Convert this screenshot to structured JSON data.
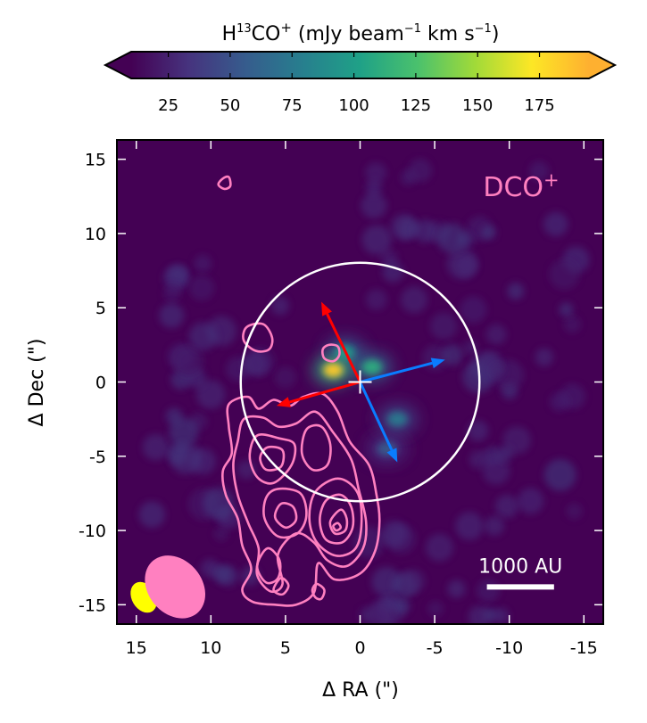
{
  "colorbar": {
    "title_main": "H",
    "title_sup_iso": "13",
    "title_mol": "CO",
    "title_sup_charge": "+",
    "title_units_a": "(mJy beam",
    "title_units_sup1": "−1",
    "title_units_b": " km s",
    "title_units_sup2": "−1",
    "title_units_c": ")",
    "range": [
      10,
      195
    ],
    "ticks": [
      {
        "value": 25,
        "label": "25"
      },
      {
        "value": 50,
        "label": "50"
      },
      {
        "value": 75,
        "label": "75"
      },
      {
        "value": 100,
        "label": "100"
      },
      {
        "value": 125,
        "label": "125"
      },
      {
        "value": 150,
        "label": "150"
      },
      {
        "value": 175,
        "label": "175"
      }
    ],
    "colors": [
      "#440154",
      "#46337e",
      "#365c8d",
      "#277f8e",
      "#1fa187",
      "#4ac16d",
      "#a0da39",
      "#fde725",
      "#feb030"
    ]
  },
  "chart_data": {
    "type": "heatmap",
    "xlabel": "Δ RA (\")",
    "ylabel": "Δ Dec (\")",
    "xlim": [
      16.3,
      -16.3
    ],
    "ylim": [
      -16.3,
      16.3
    ],
    "xticks": [
      {
        "value": 15,
        "label": "15"
      },
      {
        "value": 10,
        "label": "10"
      },
      {
        "value": 5,
        "label": "5"
      },
      {
        "value": 0,
        "label": "0"
      },
      {
        "value": -5,
        "label": "-5"
      },
      {
        "value": -10,
        "label": "-10"
      },
      {
        "value": -15,
        "label": "-15"
      }
    ],
    "yticks": [
      {
        "value": 15,
        "label": "15"
      },
      {
        "value": 10,
        "label": "10"
      },
      {
        "value": 5,
        "label": "5"
      },
      {
        "value": 0,
        "label": "0"
      },
      {
        "value": -5,
        "label": "-5"
      },
      {
        "value": -10,
        "label": "-10"
      },
      {
        "value": -15,
        "label": "-15"
      }
    ],
    "background_color": "#440154",
    "overlay_label": "DCO",
    "overlay_label_sup": "+",
    "overlay_color": "#ff80c0",
    "circle": {
      "center": [
        0,
        0
      ],
      "radius_arcsec": 8.0,
      "color": "#ffffff"
    },
    "center_marker": {
      "ra": 0,
      "dec": 0,
      "color": "#ffffff"
    },
    "arrows": [
      {
        "name": "red-arrow-north",
        "from": [
          0,
          0
        ],
        "to": [
          2.6,
          5.4
        ],
        "color": "#ff0000"
      },
      {
        "name": "red-arrow-east",
        "from": [
          0,
          0
        ],
        "to": [
          5.6,
          -1.6
        ],
        "color": "#ff0000"
      },
      {
        "name": "blue-arrow-west",
        "from": [
          0,
          0
        ],
        "to": [
          -5.7,
          1.5
        ],
        "color": "#0a7cff"
      },
      {
        "name": "blue-arrow-south",
        "from": [
          0,
          0
        ],
        "to": [
          -2.5,
          -5.4
        ],
        "color": "#0a7cff"
      }
    ],
    "emission_peaks": [
      {
        "ra": 1.8,
        "dec": 0.8,
        "value": 185
      },
      {
        "ra": 1.0,
        "dec": 2.0,
        "value": 95
      },
      {
        "ra": -0.8,
        "dec": 1.0,
        "value": 110
      },
      {
        "ra": -2.5,
        "dec": -2.5,
        "value": 75
      },
      {
        "ra": -1.8,
        "dec": -4.5,
        "value": 55
      }
    ],
    "scalebar": {
      "label": "1000 AU",
      "ra_from": -8.5,
      "ra_to": -13.0,
      "dec": -13.8,
      "color": "#ffffff"
    },
    "beams": [
      {
        "name": "h13co-beam",
        "ra": 14.5,
        "dec": -14.5,
        "major": 1.1,
        "minor": 0.8,
        "angle": -30,
        "color": "#ffff00"
      },
      {
        "name": "dco-beam",
        "ra": 12.4,
        "dec": -13.8,
        "major": 2.3,
        "minor": 1.8,
        "angle": -40,
        "color": "#ff80c0"
      }
    ],
    "contours": [
      {
        "name": "dco-contour-1",
        "points": [
          [
            8.8,
            -1.5
          ],
          [
            7.5,
            -1.0
          ],
          [
            6.8,
            -1.8
          ],
          [
            5.8,
            -1.2
          ],
          [
            4.7,
            -1.6
          ],
          [
            3.8,
            -1.0
          ],
          [
            2.5,
            -0.8
          ],
          [
            1.5,
            -2.0
          ],
          [
            0.7,
            -4.0
          ],
          [
            -0.6,
            -5.6
          ],
          [
            -1.1,
            -7.6
          ],
          [
            -1.3,
            -9.4
          ],
          [
            -1.0,
            -11.4
          ],
          [
            0.0,
            -12.9
          ],
          [
            1.7,
            -13.3
          ],
          [
            2.8,
            -12.2
          ],
          [
            3.1,
            -14.2
          ],
          [
            4.3,
            -15.0
          ],
          [
            5.7,
            -15.0
          ],
          [
            7.2,
            -14.8
          ],
          [
            7.9,
            -14.0
          ],
          [
            7.3,
            -12.6
          ],
          [
            7.9,
            -11.0
          ],
          [
            8.2,
            -9.2
          ],
          [
            9.0,
            -7.6
          ],
          [
            9.2,
            -6.0
          ],
          [
            8.6,
            -4.8
          ],
          [
            8.8,
            -3.0
          ]
        ]
      },
      {
        "name": "dco-contour-2",
        "points": [
          [
            7.8,
            -2.5
          ],
          [
            6.5,
            -2.4
          ],
          [
            5.5,
            -3.0
          ],
          [
            4.3,
            -2.8
          ],
          [
            3.0,
            -2.0
          ],
          [
            1.8,
            -3.4
          ],
          [
            0.6,
            -5.2
          ],
          [
            0.1,
            -7.2
          ],
          [
            -0.4,
            -9.4
          ],
          [
            -0.2,
            -11.2
          ],
          [
            0.9,
            -12.4
          ],
          [
            2.2,
            -12.0
          ],
          [
            3.1,
            -10.8
          ],
          [
            4.3,
            -10.2
          ],
          [
            5.5,
            -11.6
          ],
          [
            5.2,
            -13.6
          ],
          [
            6.0,
            -14.1
          ],
          [
            6.9,
            -13.0
          ],
          [
            6.8,
            -11.2
          ],
          [
            7.5,
            -9.5
          ],
          [
            8.2,
            -7.6
          ],
          [
            8.5,
            -5.6
          ],
          [
            8.2,
            -4.0
          ]
        ]
      },
      {
        "name": "dco-contour-3",
        "points": [
          [
            6.9,
            -3.6
          ],
          [
            5.4,
            -3.8
          ],
          [
            4.4,
            -4.2
          ],
          [
            4.6,
            -5.6
          ],
          [
            5.8,
            -6.8
          ],
          [
            6.9,
            -6.4
          ],
          [
            7.4,
            -5.0
          ]
        ]
      },
      {
        "name": "dco-contour-4",
        "points": [
          [
            6.2,
            -4.4
          ],
          [
            5.2,
            -4.6
          ],
          [
            5.3,
            -5.7
          ],
          [
            6.3,
            -5.9
          ],
          [
            6.7,
            -5.1
          ]
        ]
      },
      {
        "name": "dco-contour-5",
        "points": [
          [
            3.6,
            -3.2
          ],
          [
            2.6,
            -3.0
          ],
          [
            2.0,
            -4.2
          ],
          [
            2.2,
            -5.6
          ],
          [
            3.2,
            -5.9
          ],
          [
            3.9,
            -4.8
          ]
        ]
      },
      {
        "name": "dco-contour-6",
        "points": [
          [
            1.5,
            -6.5
          ],
          [
            0.2,
            -7.4
          ],
          [
            -0.1,
            -9.4
          ],
          [
            0.3,
            -11.2
          ],
          [
            1.6,
            -11.7
          ],
          [
            2.9,
            -10.8
          ],
          [
            3.4,
            -9.2
          ],
          [
            3.0,
            -7.4
          ]
        ]
      },
      {
        "name": "dco-contour-7",
        "points": [
          [
            1.3,
            -7.6
          ],
          [
            0.6,
            -8.4
          ],
          [
            0.5,
            -9.8
          ],
          [
            1.2,
            -10.8
          ],
          [
            2.3,
            -10.6
          ],
          [
            2.7,
            -9.3
          ],
          [
            2.3,
            -8.0
          ]
        ]
      },
      {
        "name": "dco-contour-8",
        "points": [
          [
            1.3,
            -8.6
          ],
          [
            0.9,
            -9.2
          ],
          [
            1.0,
            -10.0
          ],
          [
            1.7,
            -10.2
          ],
          [
            2.0,
            -9.4
          ]
        ]
      },
      {
        "name": "dco-contour-9",
        "points": [
          [
            1.5,
            -9.5
          ],
          [
            1.3,
            -9.8
          ],
          [
            1.6,
            -10.0
          ],
          [
            1.8,
            -9.7
          ]
        ]
      },
      {
        "name": "dco-contour-10",
        "points": [
          [
            5.5,
            -7.2
          ],
          [
            4.0,
            -7.5
          ],
          [
            3.6,
            -9.0
          ],
          [
            4.2,
            -10.2
          ],
          [
            5.5,
            -10.4
          ],
          [
            6.4,
            -9.2
          ],
          [
            6.3,
            -7.8
          ]
        ]
      },
      {
        "name": "dco-contour-11",
        "points": [
          [
            5.3,
            -8.2
          ],
          [
            4.5,
            -8.4
          ],
          [
            4.3,
            -9.3
          ],
          [
            5.0,
            -9.8
          ],
          [
            5.7,
            -9.1
          ]
        ]
      },
      {
        "name": "dco-contour-12",
        "points": [
          [
            6.2,
            -11.2
          ],
          [
            5.4,
            -12.0
          ],
          [
            5.5,
            -13.2
          ],
          [
            6.3,
            -13.5
          ],
          [
            6.9,
            -12.4
          ]
        ]
      },
      {
        "name": "dco-contour-13",
        "points": [
          [
            5.3,
            -13.2
          ],
          [
            4.8,
            -13.7
          ],
          [
            5.2,
            -14.3
          ],
          [
            5.8,
            -14.0
          ]
        ]
      },
      {
        "name": "dco-contour-14",
        "points": [
          [
            2.9,
            -13.6
          ],
          [
            2.4,
            -14.0
          ],
          [
            2.6,
            -14.6
          ],
          [
            3.0,
            -14.5
          ],
          [
            3.2,
            -14.0
          ]
        ]
      },
      {
        "name": "dco-contour-15",
        "points": [
          [
            7.6,
            3.7
          ],
          [
            6.5,
            3.9
          ],
          [
            5.9,
            3.0
          ],
          [
            6.1,
            2.2
          ],
          [
            7.0,
            2.1
          ],
          [
            7.8,
            2.8
          ]
        ]
      },
      {
        "name": "dco-contour-16",
        "points": [
          [
            2.1,
            2.5
          ],
          [
            1.5,
            2.4
          ],
          [
            1.4,
            1.8
          ],
          [
            1.8,
            1.4
          ],
          [
            2.4,
            1.6
          ],
          [
            2.5,
            2.2
          ]
        ]
      },
      {
        "name": "dco-contour-17",
        "points": [
          [
            9.2,
            13.7
          ],
          [
            8.8,
            13.8
          ],
          [
            8.7,
            13.2
          ],
          [
            9.1,
            13.0
          ],
          [
            9.5,
            13.3
          ]
        ]
      }
    ]
  }
}
